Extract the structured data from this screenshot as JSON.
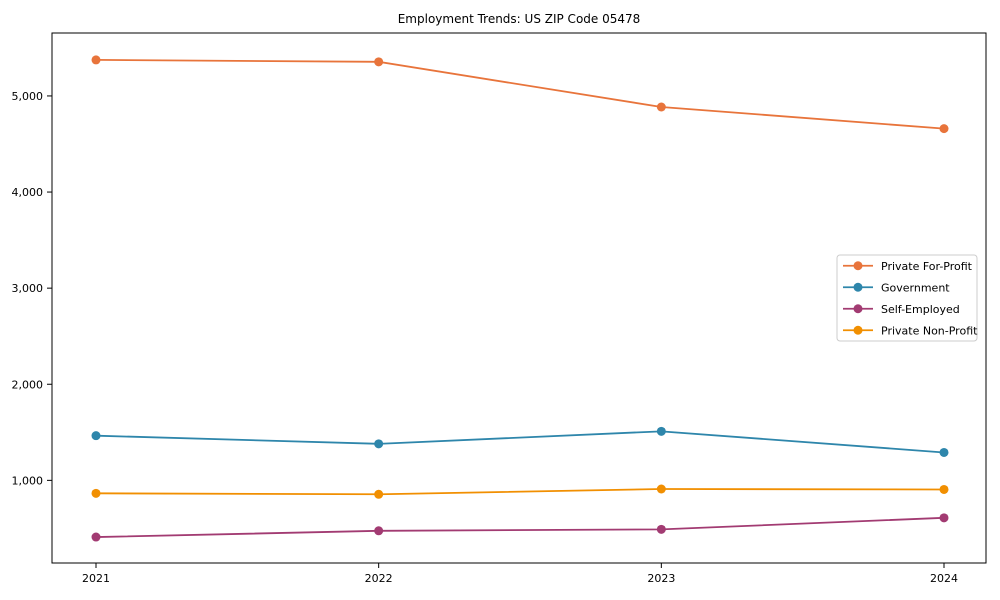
{
  "chart_data": {
    "type": "line",
    "title": "Employment Trends: US ZIP Code 05478",
    "xlabel": "",
    "ylabel": "",
    "x": [
      2021,
      2022,
      2023,
      2024
    ],
    "x_tick_labels": [
      "2021",
      "2022",
      "2023",
      "2024"
    ],
    "yticks": [
      1000,
      2000,
      3000,
      4000,
      5000
    ],
    "ytick_labels": [
      "1,000",
      "2,000",
      "3,000",
      "4,000",
      "5,000"
    ],
    "ylim": [
      140,
      5655
    ],
    "grid": false,
    "legend_position": "center-right",
    "marker": "circle",
    "series": [
      {
        "name": "Private For-Profit",
        "color": "#E8743B",
        "values": [
          5375,
          5355,
          4885,
          4660
        ]
      },
      {
        "name": "Government",
        "color": "#2E86AB",
        "values": [
          1465,
          1380,
          1510,
          1290
        ]
      },
      {
        "name": "Self-Employed",
        "color": "#A23B72",
        "values": [
          410,
          475,
          490,
          610
        ]
      },
      {
        "name": "Private Non-Profit",
        "color": "#F18F01",
        "values": [
          865,
          855,
          910,
          905
        ]
      }
    ],
    "axis_color": "#000000",
    "legend_border_color": "#cccccc"
  }
}
